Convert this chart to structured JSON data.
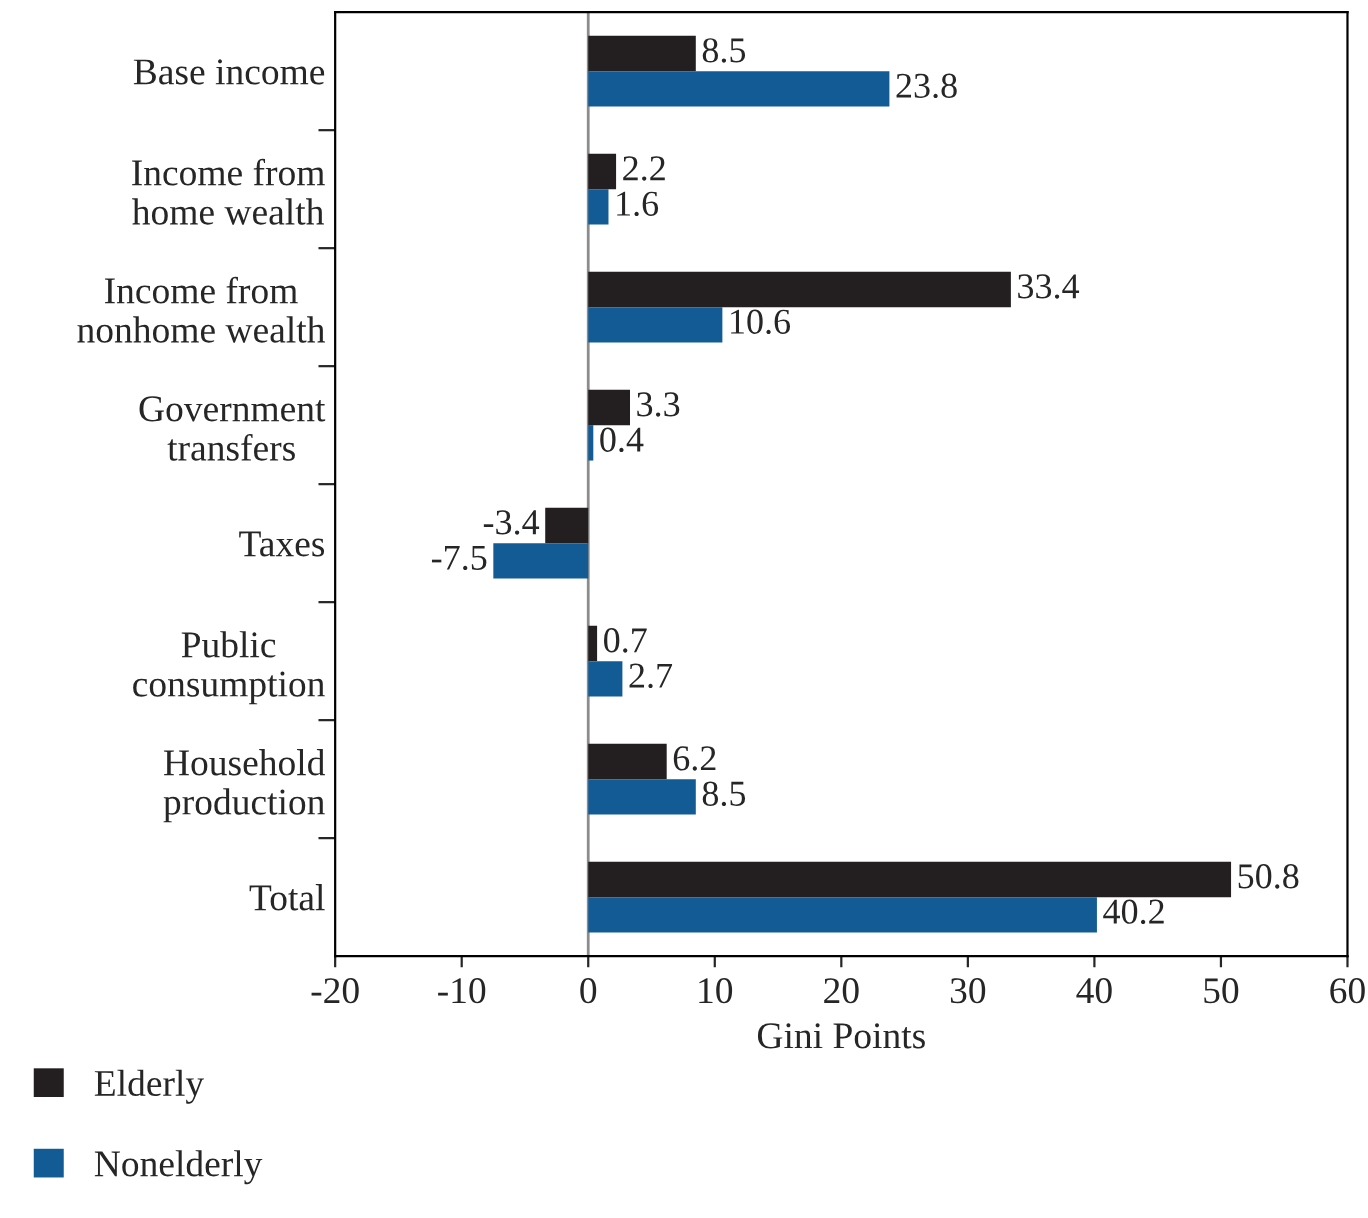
{
  "chart_data": {
    "type": "bar",
    "orientation": "horizontal",
    "xlabel": "Gini Points",
    "categories": [
      "Base income",
      "Income from\nhome wealth",
      "Income from\nnonhome wealth",
      "Government\ntransfers",
      "Taxes",
      "Public\nconsumption",
      "Household\nproduction",
      "Total"
    ],
    "series": [
      {
        "name": "Elderly",
        "color": "#231f20",
        "values": [
          8.5,
          2.2,
          33.4,
          3.3,
          -3.4,
          0.7,
          6.2,
          50.8
        ]
      },
      {
        "name": "Nonelderly",
        "color": "#135b95",
        "values": [
          23.8,
          1.6,
          10.6,
          0.4,
          -7.5,
          2.7,
          8.5,
          40.2
        ]
      }
    ],
    "xlim": [
      -20,
      60
    ],
    "xticks": [
      -20,
      -10,
      0,
      10,
      20,
      30,
      40,
      50,
      60
    ],
    "ref_lines": [
      {
        "axis": "x",
        "value": 0,
        "color": "#8c8c8c"
      }
    ],
    "data_labels": true,
    "legend": "bottom left",
    "grid": false
  }
}
